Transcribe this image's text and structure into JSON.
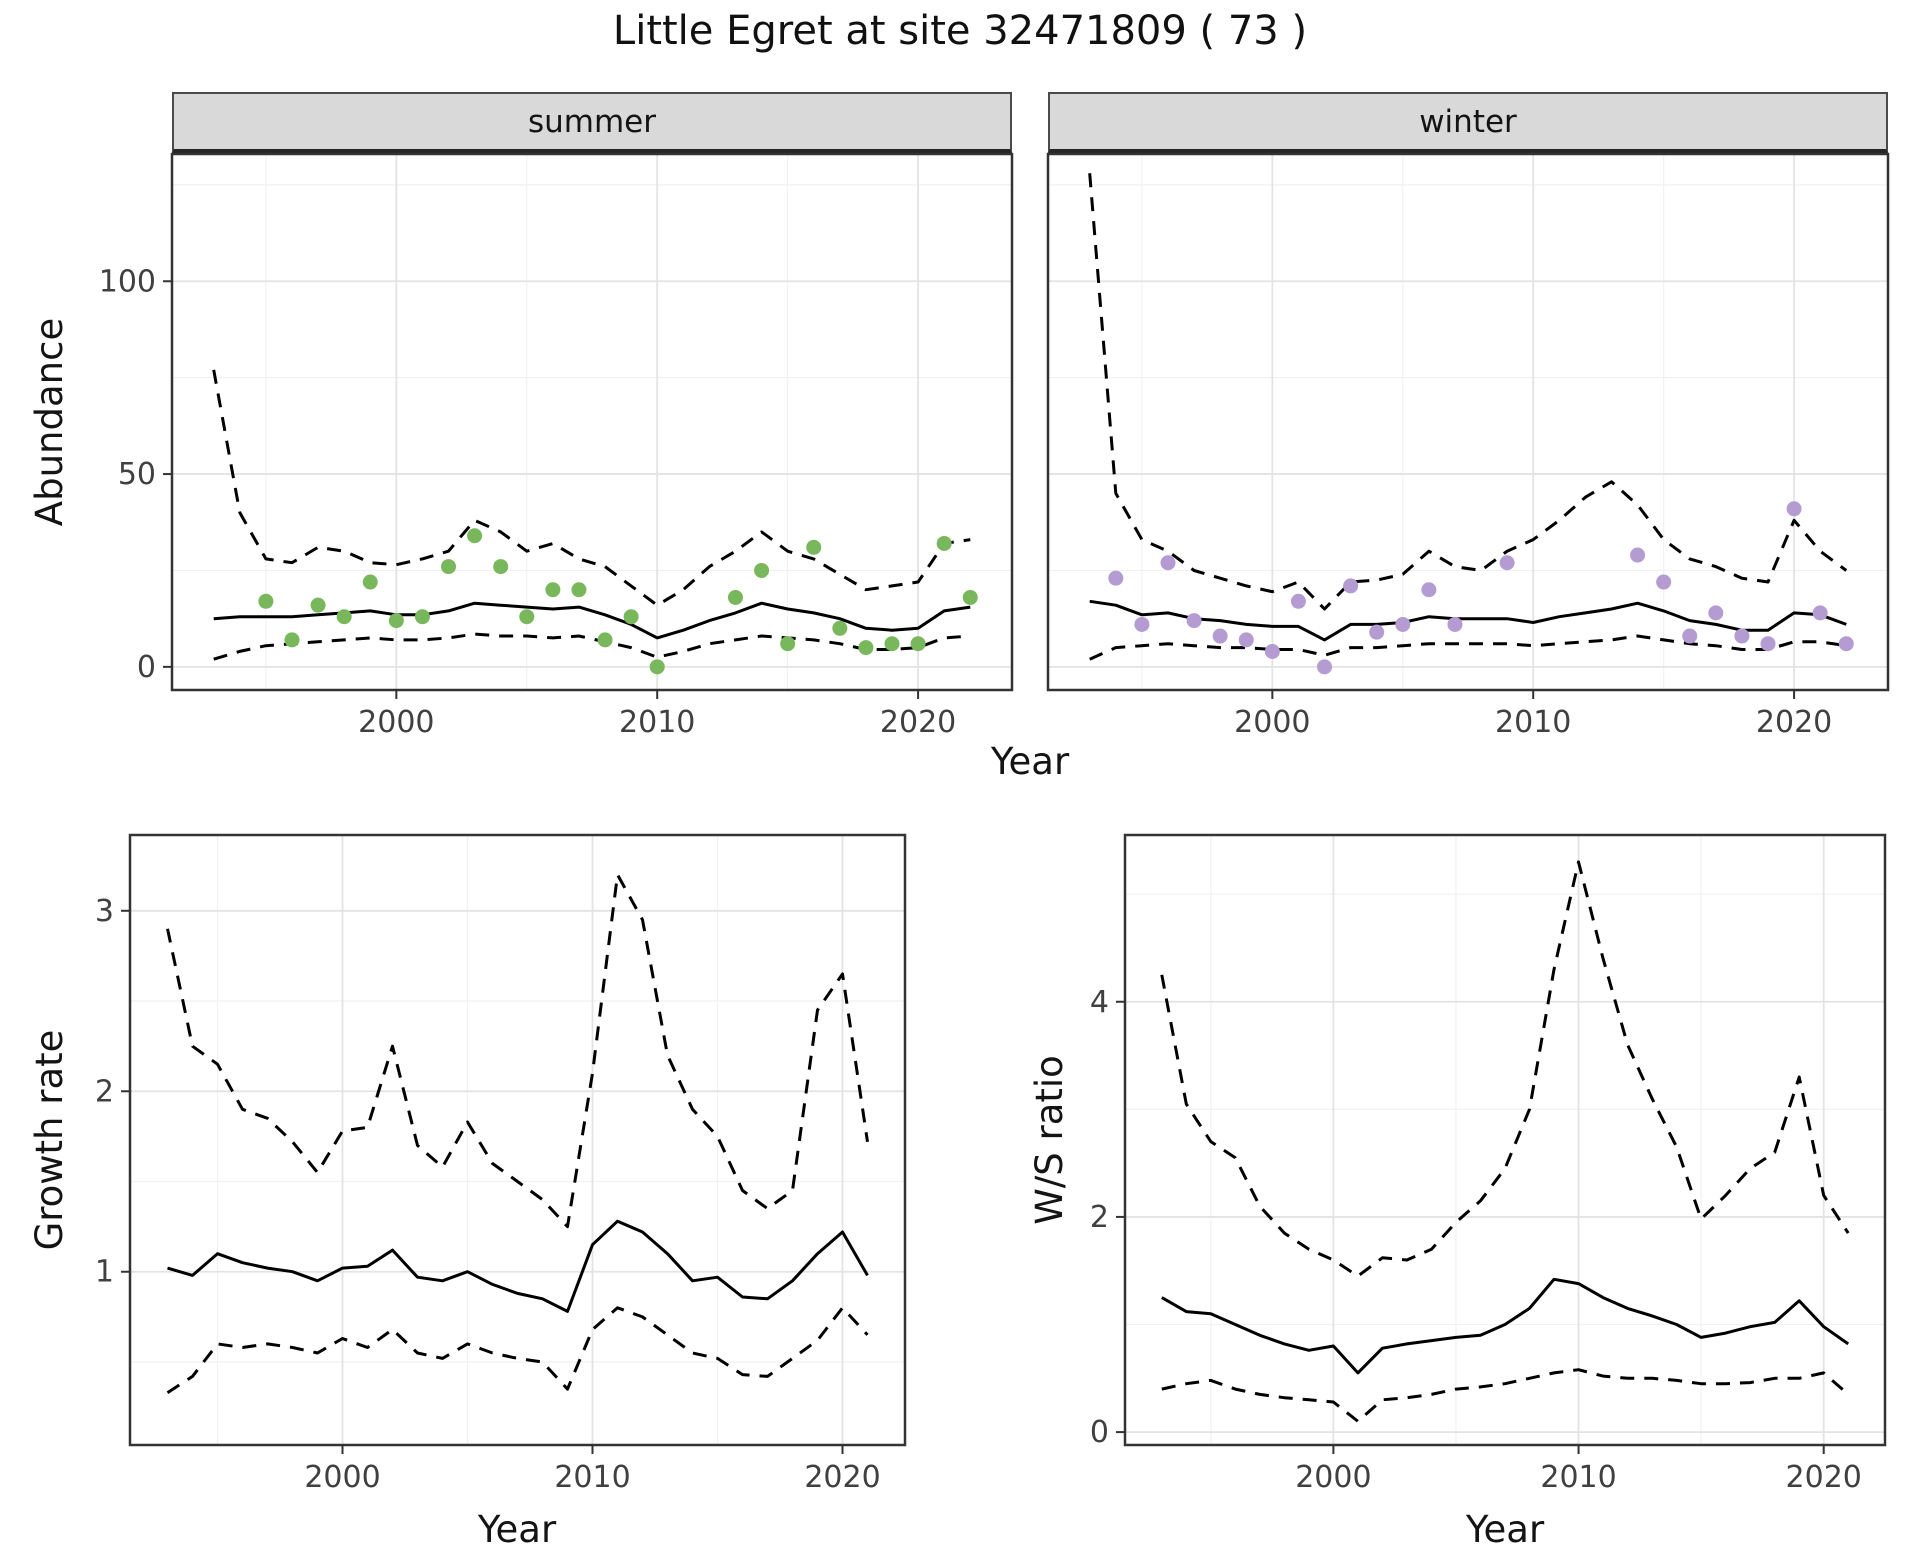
{
  "title": "Little Egret at site 32471809 ( 73 )",
  "colors": {
    "summer_points": "#78b75c",
    "winter_points": "#b49bd1",
    "line": "#000000",
    "grid_major": "#e3e3e3",
    "grid_minor": "#f1f1f1",
    "panel_border": "#333333",
    "strip_bg": "#d9d9d9"
  },
  "chart_data": [
    {
      "id": "abundance",
      "type": "line",
      "ylabel": "Abundance",
      "xlabel": "Year",
      "xlim": [
        1991.4,
        2023.6
      ],
      "ylim": [
        -6,
        133
      ],
      "xticks": [
        2000,
        2010,
        2020
      ],
      "yticks": [
        0,
        50,
        100
      ],
      "xminor": [
        1995,
        2005,
        2015
      ],
      "yminor": [
        25,
        75,
        125
      ],
      "years": [
        1993,
        1994,
        1995,
        1996,
        1997,
        1998,
        1999,
        2000,
        2001,
        2002,
        2003,
        2004,
        2005,
        2006,
        2007,
        2008,
        2009,
        2010,
        2011,
        2012,
        2013,
        2014,
        2015,
        2016,
        2017,
        2018,
        2019,
        2020,
        2021,
        2022
      ],
      "facets": [
        {
          "label": "summer",
          "point_color": "#78b75c",
          "series": [
            {
              "name": "mean",
              "style": "solid",
              "values": [
                12.5,
                13,
                13,
                13,
                13.5,
                14,
                14.5,
                13.5,
                13.5,
                14.5,
                16.5,
                16,
                15.5,
                15,
                15.5,
                13.5,
                11,
                7.5,
                9.5,
                12,
                14,
                16.5,
                15,
                14,
                12.5,
                10,
                9.5,
                10,
                14.5,
                15.5
              ]
            },
            {
              "name": "upper_ci",
              "style": "dashed",
              "values": [
                77,
                40,
                28,
                27,
                31,
                30,
                27,
                26.5,
                28,
                30,
                38,
                35,
                30,
                32,
                28,
                26,
                21,
                16,
                20,
                26,
                30,
                35,
                30,
                28,
                24,
                20,
                21,
                22,
                32,
                33
              ]
            },
            {
              "name": "lower_ci",
              "style": "dashed",
              "values": [
                2,
                4,
                5.5,
                6,
                6.5,
                7,
                7.5,
                7,
                7,
                7.5,
                8.5,
                8,
                8,
                7.5,
                8,
                6.5,
                5,
                2.5,
                4,
                6,
                7,
                8,
                7.5,
                7,
                6,
                4.5,
                4.5,
                5,
                7.5,
                8
              ]
            }
          ],
          "observations": [
            [
              1995,
              17
            ],
            [
              1996,
              7
            ],
            [
              1997,
              16
            ],
            [
              1998,
              13
            ],
            [
              1999,
              22
            ],
            [
              2000,
              12
            ],
            [
              2001,
              13
            ],
            [
              2002,
              26
            ],
            [
              2003,
              34
            ],
            [
              2004,
              26
            ],
            [
              2005,
              13
            ],
            [
              2006,
              20
            ],
            [
              2007,
              20
            ],
            [
              2008,
              7
            ],
            [
              2009,
              13
            ],
            [
              2010,
              0
            ],
            [
              2013,
              18
            ],
            [
              2014,
              25
            ],
            [
              2015,
              6
            ],
            [
              2016,
              31
            ],
            [
              2017,
              10
            ],
            [
              2018,
              5
            ],
            [
              2019,
              6
            ],
            [
              2020,
              6
            ],
            [
              2021,
              32
            ],
            [
              2022,
              18
            ]
          ]
        },
        {
          "label": "winter",
          "point_color": "#b49bd1",
          "series": [
            {
              "name": "mean",
              "style": "solid",
              "values": [
                17,
                16,
                13.5,
                14,
                12.5,
                12,
                11,
                10.5,
                10.5,
                7,
                11,
                11,
                11.5,
                13,
                12.5,
                12.5,
                12.5,
                11.5,
                13,
                14,
                15,
                16.5,
                14.5,
                12,
                11,
                9.5,
                9.5,
                14,
                13.5,
                11
              ]
            },
            {
              "name": "upper_ci",
              "style": "dashed",
              "values": [
                128,
                45,
                33,
                30,
                25,
                23,
                21,
                19.5,
                22,
                15,
                22,
                22.5,
                24,
                30,
                26,
                25,
                30,
                33,
                38,
                44,
                48,
                42,
                33,
                28,
                26,
                23,
                22,
                38,
                30,
                25
              ]
            },
            {
              "name": "lower_ci",
              "style": "dashed",
              "values": [
                2,
                5,
                5.5,
                6,
                5.5,
                5,
                5,
                4.5,
                4.5,
                3,
                5,
                5,
                5.5,
                6,
                6,
                6,
                6,
                5.5,
                6,
                6.5,
                7,
                8,
                7,
                6,
                5.5,
                4.5,
                4.5,
                6.5,
                6.5,
                5.5
              ]
            }
          ],
          "observations": [
            [
              1994,
              23
            ],
            [
              1995,
              11
            ],
            [
              1996,
              27
            ],
            [
              1997,
              12
            ],
            [
              1998,
              8
            ],
            [
              1999,
              7
            ],
            [
              2000,
              4
            ],
            [
              2001,
              17
            ],
            [
              2002,
              0
            ],
            [
              2003,
              21
            ],
            [
              2004,
              9
            ],
            [
              2005,
              11
            ],
            [
              2006,
              20
            ],
            [
              2007,
              11
            ],
            [
              2009,
              27
            ],
            [
              2014,
              29
            ],
            [
              2015,
              22
            ],
            [
              2016,
              8
            ],
            [
              2017,
              14
            ],
            [
              2018,
              8
            ],
            [
              2019,
              6
            ],
            [
              2020,
              41
            ],
            [
              2021,
              14
            ],
            [
              2022,
              6
            ]
          ]
        }
      ]
    },
    {
      "id": "growth_rate",
      "type": "line",
      "ylabel": "Growth rate",
      "xlabel": "Year",
      "xlim": [
        1991.5,
        2022.5
      ],
      "ylim": [
        0.04,
        3.42
      ],
      "xticks": [
        2000,
        2010,
        2020
      ],
      "yticks": [
        1,
        2,
        3
      ],
      "xminor": [
        1995,
        2005,
        2015
      ],
      "yminor": [
        0.5,
        1.5,
        2.5
      ],
      "years": [
        1993,
        1994,
        1995,
        1996,
        1997,
        1998,
        1999,
        2000,
        2001,
        2002,
        2003,
        2004,
        2005,
        2006,
        2007,
        2008,
        2009,
        2010,
        2011,
        2012,
        2013,
        2014,
        2015,
        2016,
        2017,
        2018,
        2019,
        2020,
        2021
      ],
      "series": [
        {
          "name": "mean",
          "style": "solid",
          "values": [
            1.02,
            0.98,
            1.1,
            1.05,
            1.02,
            1.0,
            0.95,
            1.02,
            1.03,
            1.12,
            0.97,
            0.95,
            1.0,
            0.93,
            0.88,
            0.85,
            0.78,
            1.15,
            1.28,
            1.22,
            1.1,
            0.95,
            0.97,
            0.86,
            0.85,
            0.95,
            1.1,
            1.22,
            0.98
          ]
        },
        {
          "name": "upper_ci",
          "style": "dashed",
          "values": [
            2.9,
            2.25,
            2.15,
            1.9,
            1.85,
            1.72,
            1.55,
            1.78,
            1.8,
            2.25,
            1.7,
            1.58,
            1.83,
            1.6,
            1.5,
            1.4,
            1.25,
            2.1,
            3.2,
            2.95,
            2.2,
            1.9,
            1.75,
            1.45,
            1.35,
            1.45,
            2.45,
            2.65,
            1.72
          ]
        },
        {
          "name": "lower_ci",
          "style": "dashed",
          "values": [
            0.33,
            0.42,
            0.6,
            0.58,
            0.6,
            0.58,
            0.55,
            0.63,
            0.58,
            0.68,
            0.55,
            0.52,
            0.6,
            0.55,
            0.52,
            0.5,
            0.35,
            0.68,
            0.8,
            0.75,
            0.65,
            0.55,
            0.52,
            0.43,
            0.42,
            0.52,
            0.62,
            0.8,
            0.65
          ]
        }
      ]
    },
    {
      "id": "ws_ratio",
      "type": "line",
      "ylabel": "W/S ratio",
      "xlabel": "Year",
      "xlim": [
        1991.5,
        2022.5
      ],
      "ylim": [
        -0.12,
        5.55
      ],
      "xticks": [
        2000,
        2010,
        2020
      ],
      "yticks": [
        0,
        2,
        4
      ],
      "xminor": [
        1995,
        2005,
        2015
      ],
      "yminor": [
        1,
        3,
        5
      ],
      "years": [
        1993,
        1994,
        1995,
        1996,
        1997,
        1998,
        1999,
        2000,
        2001,
        2002,
        2003,
        2004,
        2005,
        2006,
        2007,
        2008,
        2009,
        2010,
        2011,
        2012,
        2013,
        2014,
        2015,
        2016,
        2017,
        2018,
        2019,
        2020,
        2021
      ],
      "series": [
        {
          "name": "mean",
          "style": "solid",
          "values": [
            1.25,
            1.12,
            1.1,
            1.0,
            0.9,
            0.82,
            0.76,
            0.8,
            0.55,
            0.78,
            0.82,
            0.85,
            0.88,
            0.9,
            1.0,
            1.15,
            1.42,
            1.38,
            1.25,
            1.15,
            1.08,
            1.0,
            0.88,
            0.92,
            0.98,
            1.02,
            1.22,
            0.98,
            0.82
          ]
        },
        {
          "name": "upper_ci",
          "style": "dashed",
          "values": [
            4.25,
            3.05,
            2.7,
            2.55,
            2.1,
            1.85,
            1.7,
            1.6,
            1.45,
            1.62,
            1.6,
            1.7,
            1.95,
            2.15,
            2.45,
            3.0,
            4.3,
            5.3,
            4.4,
            3.6,
            3.1,
            2.65,
            1.98,
            2.2,
            2.45,
            2.6,
            3.3,
            2.2,
            1.85
          ]
        },
        {
          "name": "lower_ci",
          "style": "dashed",
          "values": [
            0.4,
            0.45,
            0.48,
            0.4,
            0.35,
            0.32,
            0.3,
            0.28,
            0.1,
            0.3,
            0.32,
            0.35,
            0.4,
            0.42,
            0.45,
            0.5,
            0.55,
            0.58,
            0.52,
            0.5,
            0.5,
            0.48,
            0.45,
            0.45,
            0.46,
            0.5,
            0.5,
            0.55,
            0.35
          ]
        }
      ]
    }
  ]
}
